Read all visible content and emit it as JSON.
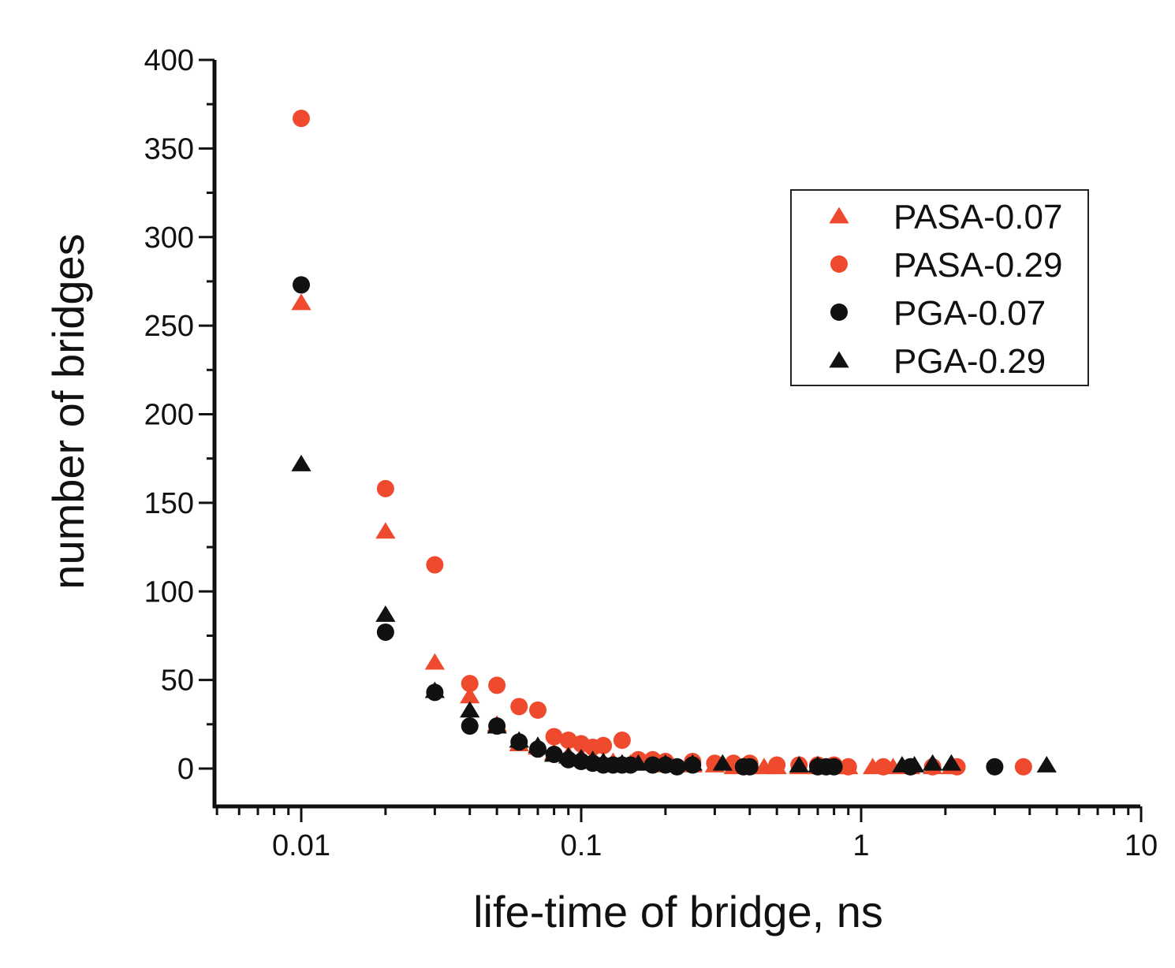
{
  "chart_data": {
    "type": "scatter",
    "title": "",
    "xlabel": "life-time of bridge, ns",
    "ylabel": "number of bridges",
    "xscale": "log",
    "xlim": [
      0.005,
      10
    ],
    "ylim": [
      -20,
      400
    ],
    "xticks": [
      0.01,
      0.1,
      1,
      10
    ],
    "xtick_labels": [
      "0.01",
      "0.1",
      "1",
      "10"
    ],
    "yticks": [
      0,
      50,
      100,
      150,
      200,
      250,
      300,
      350,
      400
    ],
    "ytick_labels": [
      "0",
      "50",
      "100",
      "150",
      "200",
      "250",
      "300",
      "350",
      "400"
    ],
    "grid": false,
    "legend_position": "top-right",
    "series": [
      {
        "name": "PASA-0.07",
        "marker": "triangle",
        "color": "#f04a2e",
        "x": [
          0.01,
          0.02,
          0.03,
          0.04,
          0.05,
          0.06,
          0.07,
          0.08,
          0.09,
          0.1,
          0.11,
          0.12,
          0.13,
          0.14,
          0.15,
          0.17,
          0.2,
          0.25,
          0.3,
          0.35,
          0.4,
          0.45,
          0.5,
          0.6,
          0.7,
          0.8,
          0.9,
          1.1,
          1.3,
          1.5,
          1.8,
          2.1
        ],
        "y": [
          263,
          134,
          60,
          41,
          25,
          14,
          12,
          9,
          8,
          7,
          5,
          4,
          4,
          3,
          3,
          3,
          2,
          2,
          2,
          1,
          1,
          1,
          1,
          1,
          1,
          1,
          1,
          1,
          1,
          1,
          1,
          1
        ]
      },
      {
        "name": "PASA-0.29",
        "marker": "circle",
        "color": "#f04a2e",
        "x": [
          0.01,
          0.02,
          0.03,
          0.04,
          0.05,
          0.06,
          0.07,
          0.08,
          0.09,
          0.1,
          0.11,
          0.12,
          0.14,
          0.16,
          0.18,
          0.2,
          0.25,
          0.3,
          0.35,
          0.4,
          0.5,
          0.6,
          0.7,
          0.8,
          0.9,
          1.2,
          1.5,
          1.8,
          2.2,
          3.8
        ],
        "y": [
          367,
          158,
          115,
          48,
          47,
          35,
          33,
          18,
          16,
          14,
          12,
          13,
          16,
          5,
          5,
          4,
          4,
          3,
          3,
          3,
          2,
          2,
          2,
          2,
          1,
          1,
          1,
          1,
          1,
          1
        ]
      },
      {
        "name": "PGA-0.07",
        "marker": "circle",
        "color": "#111111",
        "x": [
          0.01,
          0.02,
          0.03,
          0.04,
          0.05,
          0.06,
          0.07,
          0.08,
          0.09,
          0.1,
          0.11,
          0.12,
          0.13,
          0.14,
          0.15,
          0.18,
          0.2,
          0.22,
          0.25,
          0.38,
          0.4,
          0.7,
          0.75,
          0.8,
          1.5,
          3.0
        ],
        "y": [
          273,
          77,
          43,
          24,
          24,
          15,
          11,
          8,
          5,
          4,
          3,
          2,
          2,
          2,
          2,
          2,
          2,
          1,
          2,
          1,
          1,
          1,
          1,
          1,
          1,
          1
        ]
      },
      {
        "name": "PGA-0.29",
        "marker": "triangle",
        "color": "#111111",
        "x": [
          0.01,
          0.02,
          0.03,
          0.04,
          0.05,
          0.06,
          0.07,
          0.08,
          0.09,
          0.1,
          0.11,
          0.12,
          0.14,
          0.16,
          0.2,
          0.25,
          0.32,
          0.6,
          0.7,
          1.4,
          1.55,
          1.8,
          2.1,
          4.6
        ],
        "y": [
          172,
          87,
          44,
          33,
          24,
          16,
          13,
          8,
          7,
          6,
          5,
          4,
          3,
          3,
          3,
          3,
          3,
          2,
          2,
          2,
          2,
          3,
          3,
          2
        ]
      }
    ]
  }
}
